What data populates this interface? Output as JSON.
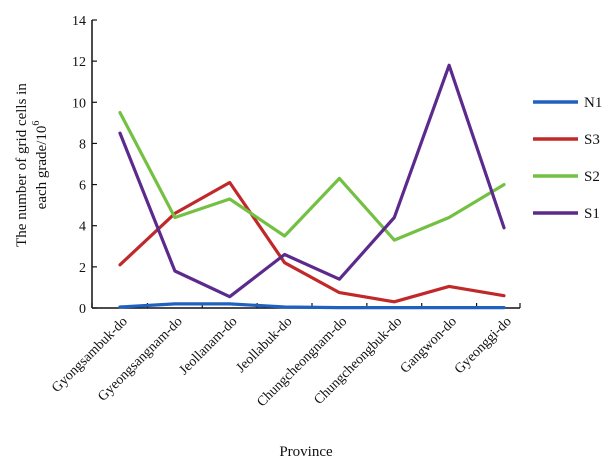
{
  "chart_data": {
    "type": "line",
    "title": "",
    "xlabel": "Province",
    "ylabel_line1": "The number of grid cells in",
    "ylabel_line2_base": "each grade/10",
    "ylabel_line2_sup": "6",
    "categories": [
      "Gyongsambuk-do",
      "Gyeongsangnam-do",
      "Jeollanam-do",
      "Jeollabuk-do",
      "Chungcheongnam-do",
      "Chungcheongbuk-do",
      "Gangwon-do",
      "Gyeonggi-do"
    ],
    "ylim": [
      0,
      14
    ],
    "yticks": [
      0,
      2,
      4,
      6,
      8,
      10,
      12,
      14
    ],
    "grid": false,
    "legend_position": "right",
    "series": [
      {
        "name": "N1",
        "color": "#2060c0",
        "values": [
          0.05,
          0.2,
          0.2,
          0.05,
          0.02,
          0.02,
          0.02,
          0.02
        ]
      },
      {
        "name": "S3",
        "color": "#c0282a",
        "values": [
          2.1,
          4.6,
          6.1,
          2.2,
          0.75,
          0.3,
          1.05,
          0.6
        ]
      },
      {
        "name": "S2",
        "color": "#74c043",
        "values": [
          9.5,
          4.4,
          5.3,
          3.5,
          6.3,
          3.3,
          4.4,
          6.0
        ]
      },
      {
        "name": "S1",
        "color": "#5b2a8c",
        "values": [
          8.5,
          1.8,
          0.55,
          2.6,
          1.4,
          4.4,
          11.8,
          3.9
        ]
      }
    ]
  }
}
